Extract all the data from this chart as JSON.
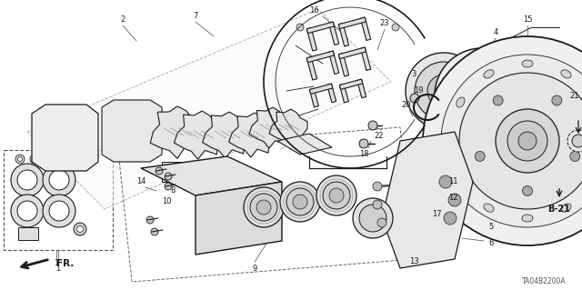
{
  "bg_color": "#ffffff",
  "diagram_code": "TA04B2200A",
  "ref_code": "B-21",
  "fr_label": "FR.",
  "figsize": [
    6.4,
    3.19
  ],
  "dpi": 100,
  "line_color": "#1a1a1a",
  "light_fill": "#f2f2f2",
  "mid_fill": "#e0e0e0",
  "dark_fill": "#c8c8c8",
  "label_fs": 6.0,
  "label_bold_fs": 7.0
}
